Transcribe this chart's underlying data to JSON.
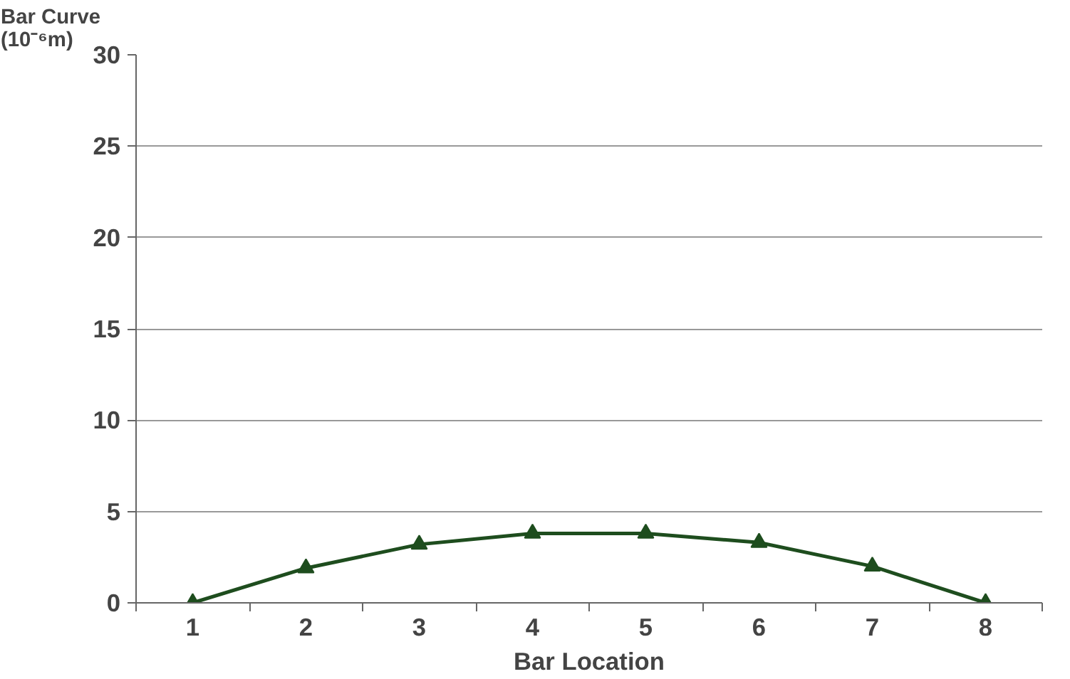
{
  "chart_data": {
    "type": "line",
    "xlabel": "Bar Location",
    "ylabel": "Bar Curve\n(10⁻⁶m)",
    "categories": [
      "1",
      "2",
      "3",
      "4",
      "5",
      "6",
      "7",
      "8"
    ],
    "series": [
      {
        "color": "#1e4d1e",
        "values": [
          0,
          1.9,
          3.2,
          3.8,
          3.8,
          3.3,
          2.0,
          0
        ]
      }
    ],
    "ylim": [
      0,
      30
    ],
    "yticks": [
      0,
      5,
      10,
      15,
      20,
      25,
      30
    ],
    "grid": "y",
    "marker": "triangle",
    "line_style": "solid"
  }
}
